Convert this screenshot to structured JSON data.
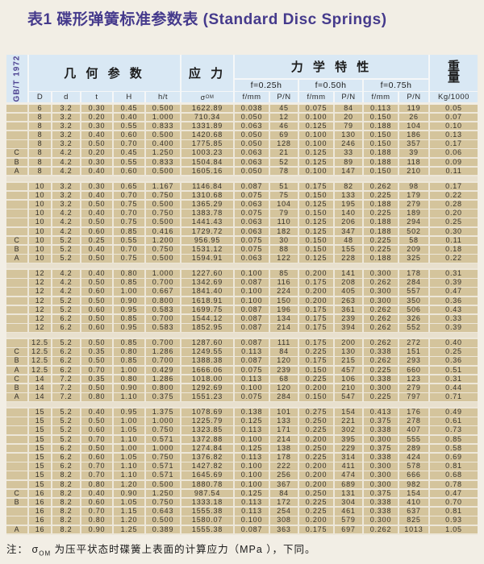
{
  "title": "表1 碟形弹簧标准参数表 (Standard Disc Springs)",
  "standard_label": "GB/T 1972",
  "header": {
    "geometry_group": "几 何 参 数",
    "stress_group": "应 力",
    "mechanical_group": "力 学 特 性",
    "weight_line1": "重",
    "weight_line2": "量",
    "deflection_levels": [
      "f=0.25h",
      "f=0.50h",
      "f=0.75h"
    ],
    "columns": [
      "D",
      "d",
      "t",
      "H",
      "h/t"
    ],
    "sigma_symbol": "σ",
    "sigma_sub": "OM",
    "f_label": "f/mm",
    "p_label": "P/N",
    "weight_unit": "Kg/1000"
  },
  "note": {
    "prefix": "注：",
    "sigma": "σ",
    "sigma_sub": "OM",
    "text": "为压平状态时碟簧上表面的计算应力（MPa ），下同。"
  },
  "table": {
    "blocks": [
      [
        [
          "",
          "6",
          "3.2",
          "0.30",
          "0.45",
          "0.500",
          "1622.89",
          "0.038",
          "45",
          "0.075",
          "84",
          "0.113",
          "119",
          "0.05"
        ],
        [
          "",
          "8",
          "3.2",
          "0.20",
          "0.40",
          "1.000",
          "710.34",
          "0.050",
          "12",
          "0.100",
          "20",
          "0.150",
          "26",
          "0.07"
        ],
        [
          "",
          "8",
          "3.2",
          "0.30",
          "0.55",
          "0.833",
          "1331.89",
          "0.063",
          "46",
          "0.125",
          "79",
          "0.188",
          "104",
          "0.10"
        ],
        [
          "",
          "8",
          "3.2",
          "0.40",
          "0.60",
          "0.500",
          "1420.68",
          "0.050",
          "69",
          "0.100",
          "130",
          "0.150",
          "186",
          "0.13"
        ],
        [
          "",
          "8",
          "3.2",
          "0.50",
          "0.70",
          "0.400",
          "1775.85",
          "0.050",
          "128",
          "0.100",
          "246",
          "0.150",
          "357",
          "0.17"
        ],
        [
          "C",
          "8",
          "4.2",
          "0.20",
          "0.45",
          "1.250",
          "1003.23",
          "0.063",
          "21",
          "0.125",
          "33",
          "0.188",
          "39",
          "0.06"
        ],
        [
          "B",
          "8",
          "4.2",
          "0.30",
          "0.55",
          "0.833",
          "1504.84",
          "0.063",
          "52",
          "0.125",
          "89",
          "0.188",
          "118",
          "0.09"
        ],
        [
          "A",
          "8",
          "4.2",
          "0.40",
          "0.60",
          "0.500",
          "1605.16",
          "0.050",
          "78",
          "0.100",
          "147",
          "0.150",
          "210",
          "0.11"
        ]
      ],
      [
        [
          "",
          "10",
          "3.2",
          "0.30",
          "0.65",
          "1.167",
          "1146.84",
          "0.087",
          "51",
          "0.175",
          "82",
          "0.262",
          "98",
          "0.17"
        ],
        [
          "",
          "10",
          "3.2",
          "0.40",
          "0.70",
          "0.750",
          "1310.68",
          "0.075",
          "75",
          "0.150",
          "133",
          "0.225",
          "179",
          "0.22"
        ],
        [
          "",
          "10",
          "3.2",
          "0.50",
          "0.75",
          "0.500",
          "1365.29",
          "0.063",
          "104",
          "0.125",
          "195",
          "0.188",
          "279",
          "0.28"
        ],
        [
          "",
          "10",
          "4.2",
          "0.40",
          "0.70",
          "0.750",
          "1383.78",
          "0.075",
          "79",
          "0.150",
          "140",
          "0.225",
          "189",
          "0.20"
        ],
        [
          "",
          "10",
          "4.2",
          "0.50",
          "0.75",
          "0.500",
          "1441.43",
          "0.063",
          "110",
          "0.125",
          "206",
          "0.188",
          "294",
          "0.25"
        ],
        [
          "",
          "10",
          "4.2",
          "0.60",
          "0.85",
          "0.416",
          "1729.72",
          "0.063",
          "182",
          "0.125",
          "347",
          "0.188",
          "502",
          "0.30"
        ],
        [
          "C",
          "10",
          "5.2",
          "0.25",
          "0.55",
          "1.200",
          "956.95",
          "0.075",
          "30",
          "0.150",
          "48",
          "0.225",
          "58",
          "0.11"
        ],
        [
          "B",
          "10",
          "5.2",
          "0.40",
          "0.70",
          "0.750",
          "1531.12",
          "0.075",
          "88",
          "0.150",
          "155",
          "0.225",
          "209",
          "0.18"
        ],
        [
          "A",
          "10",
          "5.2",
          "0.50",
          "0.75",
          "0.500",
          "1594.91",
          "0.063",
          "122",
          "0.125",
          "228",
          "0.188",
          "325",
          "0.22"
        ]
      ],
      [
        [
          "",
          "12",
          "4.2",
          "0.40",
          "0.80",
          "1.000",
          "1227.60",
          "0.100",
          "85",
          "0.200",
          "141",
          "0.300",
          "178",
          "0.31"
        ],
        [
          "",
          "12",
          "4.2",
          "0.50",
          "0.85",
          "0.700",
          "1342.69",
          "0.087",
          "116",
          "0.175",
          "208",
          "0.262",
          "284",
          "0.39"
        ],
        [
          "",
          "12",
          "4.2",
          "0.60",
          "1.00",
          "0.667",
          "1841.40",
          "0.100",
          "224",
          "0.200",
          "405",
          "0.300",
          "557",
          "0.47"
        ],
        [
          "",
          "12",
          "5.2",
          "0.50",
          "0.90",
          "0.800",
          "1618.91",
          "0.100",
          "150",
          "0.200",
          "263",
          "0.300",
          "350",
          "0.36"
        ],
        [
          "",
          "12",
          "5.2",
          "0.60",
          "0.95",
          "0.583",
          "1699.75",
          "0.087",
          "196",
          "0.175",
          "361",
          "0.262",
          "506",
          "0.43"
        ],
        [
          "",
          "12",
          "6.2",
          "0.50",
          "0.85",
          "0.700",
          "1544.12",
          "0.087",
          "134",
          "0.175",
          "239",
          "0.262",
          "326",
          "0.33"
        ],
        [
          "",
          "12",
          "6.2",
          "0.60",
          "0.95",
          "0.583",
          "1852.95",
          "0.087",
          "214",
          "0.175",
          "394",
          "0.262",
          "552",
          "0.39"
        ]
      ],
      [
        [
          "",
          "12.5",
          "5.2",
          "0.50",
          "0.85",
          "0.700",
          "1287.60",
          "0.087",
          "111",
          "0.175",
          "200",
          "0.262",
          "272",
          "0.40"
        ],
        [
          "C",
          "12.5",
          "6.2",
          "0.35",
          "0.80",
          "1.286",
          "1249.55",
          "0.113",
          "84",
          "0.225",
          "130",
          "0.338",
          "151",
          "0.25"
        ],
        [
          "B",
          "12.5",
          "6.2",
          "0.50",
          "0.85",
          "0.700",
          "1388.38",
          "0.087",
          "120",
          "0.175",
          "215",
          "0.262",
          "293",
          "0.36"
        ],
        [
          "A",
          "12.5",
          "6.2",
          "0.70",
          "1.00",
          "0.429",
          "1666.06",
          "0.075",
          "239",
          "0.150",
          "457",
          "0.225",
          "660",
          "0.51"
        ],
        [
          "C",
          "14",
          "7.2",
          "0.35",
          "0.80",
          "1.286",
          "1018.00",
          "0.113",
          "68",
          "0.225",
          "106",
          "0.338",
          "123",
          "0.31"
        ],
        [
          "B",
          "14",
          "7.2",
          "0.50",
          "0.90",
          "0.800",
          "1292.69",
          "0.100",
          "120",
          "0.200",
          "210",
          "0.300",
          "279",
          "0.44"
        ],
        [
          "A",
          "14",
          "7.2",
          "0.80",
          "1.10",
          "0.375",
          "1551.23",
          "0.075",
          "284",
          "0.150",
          "547",
          "0.225",
          "797",
          "0.71"
        ]
      ],
      [
        [
          "",
          "15",
          "5.2",
          "0.40",
          "0.95",
          "1.375",
          "1078.69",
          "0.138",
          "101",
          "0.275",
          "154",
          "0.413",
          "176",
          "0.49"
        ],
        [
          "",
          "15",
          "5.2",
          "0.50",
          "1.00",
          "1.000",
          "1225.79",
          "0.125",
          "133",
          "0.250",
          "221",
          "0.375",
          "278",
          "0.61"
        ],
        [
          "",
          "15",
          "5.2",
          "0.60",
          "1.05",
          "0.750",
          "1323.85",
          "0.113",
          "171",
          "0.225",
          "302",
          "0.338",
          "407",
          "0.73"
        ],
        [
          "",
          "15",
          "5.2",
          "0.70",
          "1.10",
          "0.571",
          "1372.88",
          "0.100",
          "214",
          "0.200",
          "395",
          "0.300",
          "555",
          "0.85"
        ],
        [
          "",
          "15",
          "6.2",
          "0.50",
          "1.00",
          "1.000",
          "1274.84",
          "0.125",
          "138",
          "0.250",
          "229",
          "0.375",
          "289",
          "0.58"
        ],
        [
          "",
          "15",
          "6.2",
          "0.60",
          "1.05",
          "0.750",
          "1376.82",
          "0.113",
          "178",
          "0.225",
          "314",
          "0.338",
          "424",
          "0.69"
        ],
        [
          "",
          "15",
          "6.2",
          "0.70",
          "1.10",
          "0.571",
          "1427.82",
          "0.100",
          "222",
          "0.200",
          "411",
          "0.300",
          "578",
          "0.81"
        ],
        [
          "",
          "15",
          "8.2",
          "0.70",
          "1.10",
          "0.571",
          "1645.69",
          "0.100",
          "256",
          "0.200",
          "474",
          "0.300",
          "666",
          "0.68"
        ],
        [
          "",
          "15",
          "8.2",
          "0.80",
          "1.20",
          "0.500",
          "1880.78",
          "0.100",
          "367",
          "0.200",
          "689",
          "0.300",
          "982",
          "0.78"
        ],
        [
          "C",
          "16",
          "8.2",
          "0.40",
          "0.90",
          "1.250",
          "987.54",
          "0.125",
          "84",
          "0.250",
          "131",
          "0.375",
          "154",
          "0.47"
        ],
        [
          "B",
          "16",
          "8.2",
          "0.60",
          "1.05",
          "0.750",
          "1333.18",
          "0.113",
          "172",
          "0.225",
          "304",
          "0.338",
          "410",
          "0.70"
        ],
        [
          "",
          "16",
          "8.2",
          "0.70",
          "1.15",
          "0.643",
          "1555.38",
          "0.113",
          "254",
          "0.225",
          "461",
          "0.338",
          "637",
          "0.81"
        ],
        [
          "",
          "16",
          "8.2",
          "0.80",
          "1.20",
          "0.500",
          "1580.07",
          "0.100",
          "308",
          "0.200",
          "579",
          "0.300",
          "825",
          "0.93"
        ],
        [
          "A",
          "16",
          "8.2",
          "0.90",
          "1.25",
          "0.389",
          "1555.38",
          "0.087",
          "363",
          "0.175",
          "697",
          "0.262",
          "1013",
          "1.05"
        ]
      ]
    ]
  }
}
